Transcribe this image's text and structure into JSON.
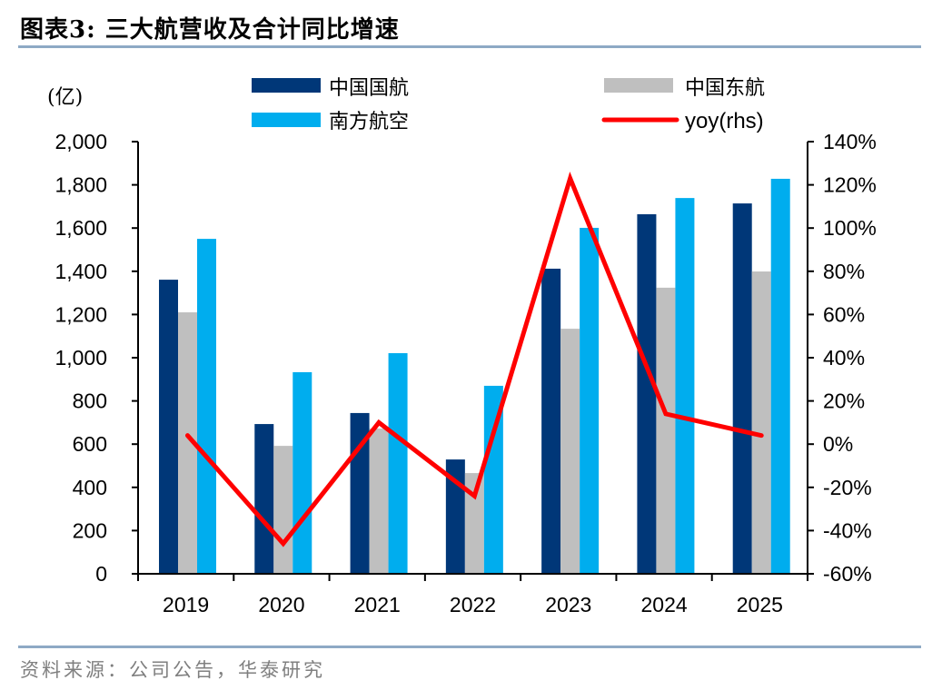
{
  "header": {
    "title": "图表3:  三大航营收及合计同比增速"
  },
  "footer": {
    "source": "资料来源：公司公告，华泰研究"
  },
  "chart_data": {
    "type": "bar",
    "title": "三大航营收及合计同比增速",
    "figure_label": "图表3",
    "unit_label": "(亿)",
    "categories": [
      "2019",
      "2020",
      "2021",
      "2022",
      "2023",
      "2024",
      "2025"
    ],
    "series": [
      {
        "name": "中国国航",
        "type": "bar",
        "axis": "left",
        "color": "#003778",
        "values": [
          1361,
          693,
          744,
          529,
          1412,
          1664,
          1714
        ]
      },
      {
        "name": "中国东航",
        "type": "bar",
        "axis": "left",
        "color": "#bfbfbf",
        "values": [
          1210,
          592,
          672,
          466,
          1134,
          1324,
          1399
        ]
      },
      {
        "name": "南方航空",
        "type": "bar",
        "axis": "left",
        "color": "#00adee",
        "values": [
          1550,
          933,
          1021,
          870,
          1601,
          1739,
          1828
        ]
      },
      {
        "name": "yoy(rhs)",
        "type": "line",
        "axis": "right",
        "color": "#ff0000",
        "values": [
          4,
          -46,
          10,
          -24,
          123,
          14,
          4
        ],
        "unit": "%"
      }
    ],
    "left_axis": {
      "range": [
        0,
        2000
      ],
      "ticks": [
        0,
        200,
        400,
        600,
        800,
        1000,
        1200,
        1400,
        1600,
        1800,
        2000
      ],
      "tick_labels": [
        "0",
        "200",
        "400",
        "600",
        "800",
        "1,000",
        "1,200",
        "1,400",
        "1,600",
        "1,800",
        "2,000"
      ]
    },
    "right_axis": {
      "range": [
        -60,
        140
      ],
      "ticks": [
        -60,
        -40,
        -20,
        0,
        20,
        40,
        60,
        80,
        100,
        120,
        140
      ],
      "tick_labels": [
        "-60%",
        "-40%",
        "-20%",
        "0%",
        "20%",
        "40%",
        "60%",
        "80%",
        "100%",
        "120%",
        "140%"
      ]
    },
    "xlabel": "",
    "ylabel": "(亿)",
    "grid": false,
    "legend": {
      "position": "top",
      "entries": [
        {
          "label": "中国国航",
          "kind": "bar",
          "color": "#003778"
        },
        {
          "label": "中国东航",
          "kind": "bar",
          "color": "#bfbfbf"
        },
        {
          "label": "南方航空",
          "kind": "bar",
          "color": "#00adee"
        },
        {
          "label": "yoy(rhs)",
          "kind": "line",
          "color": "#ff0000"
        }
      ]
    }
  }
}
